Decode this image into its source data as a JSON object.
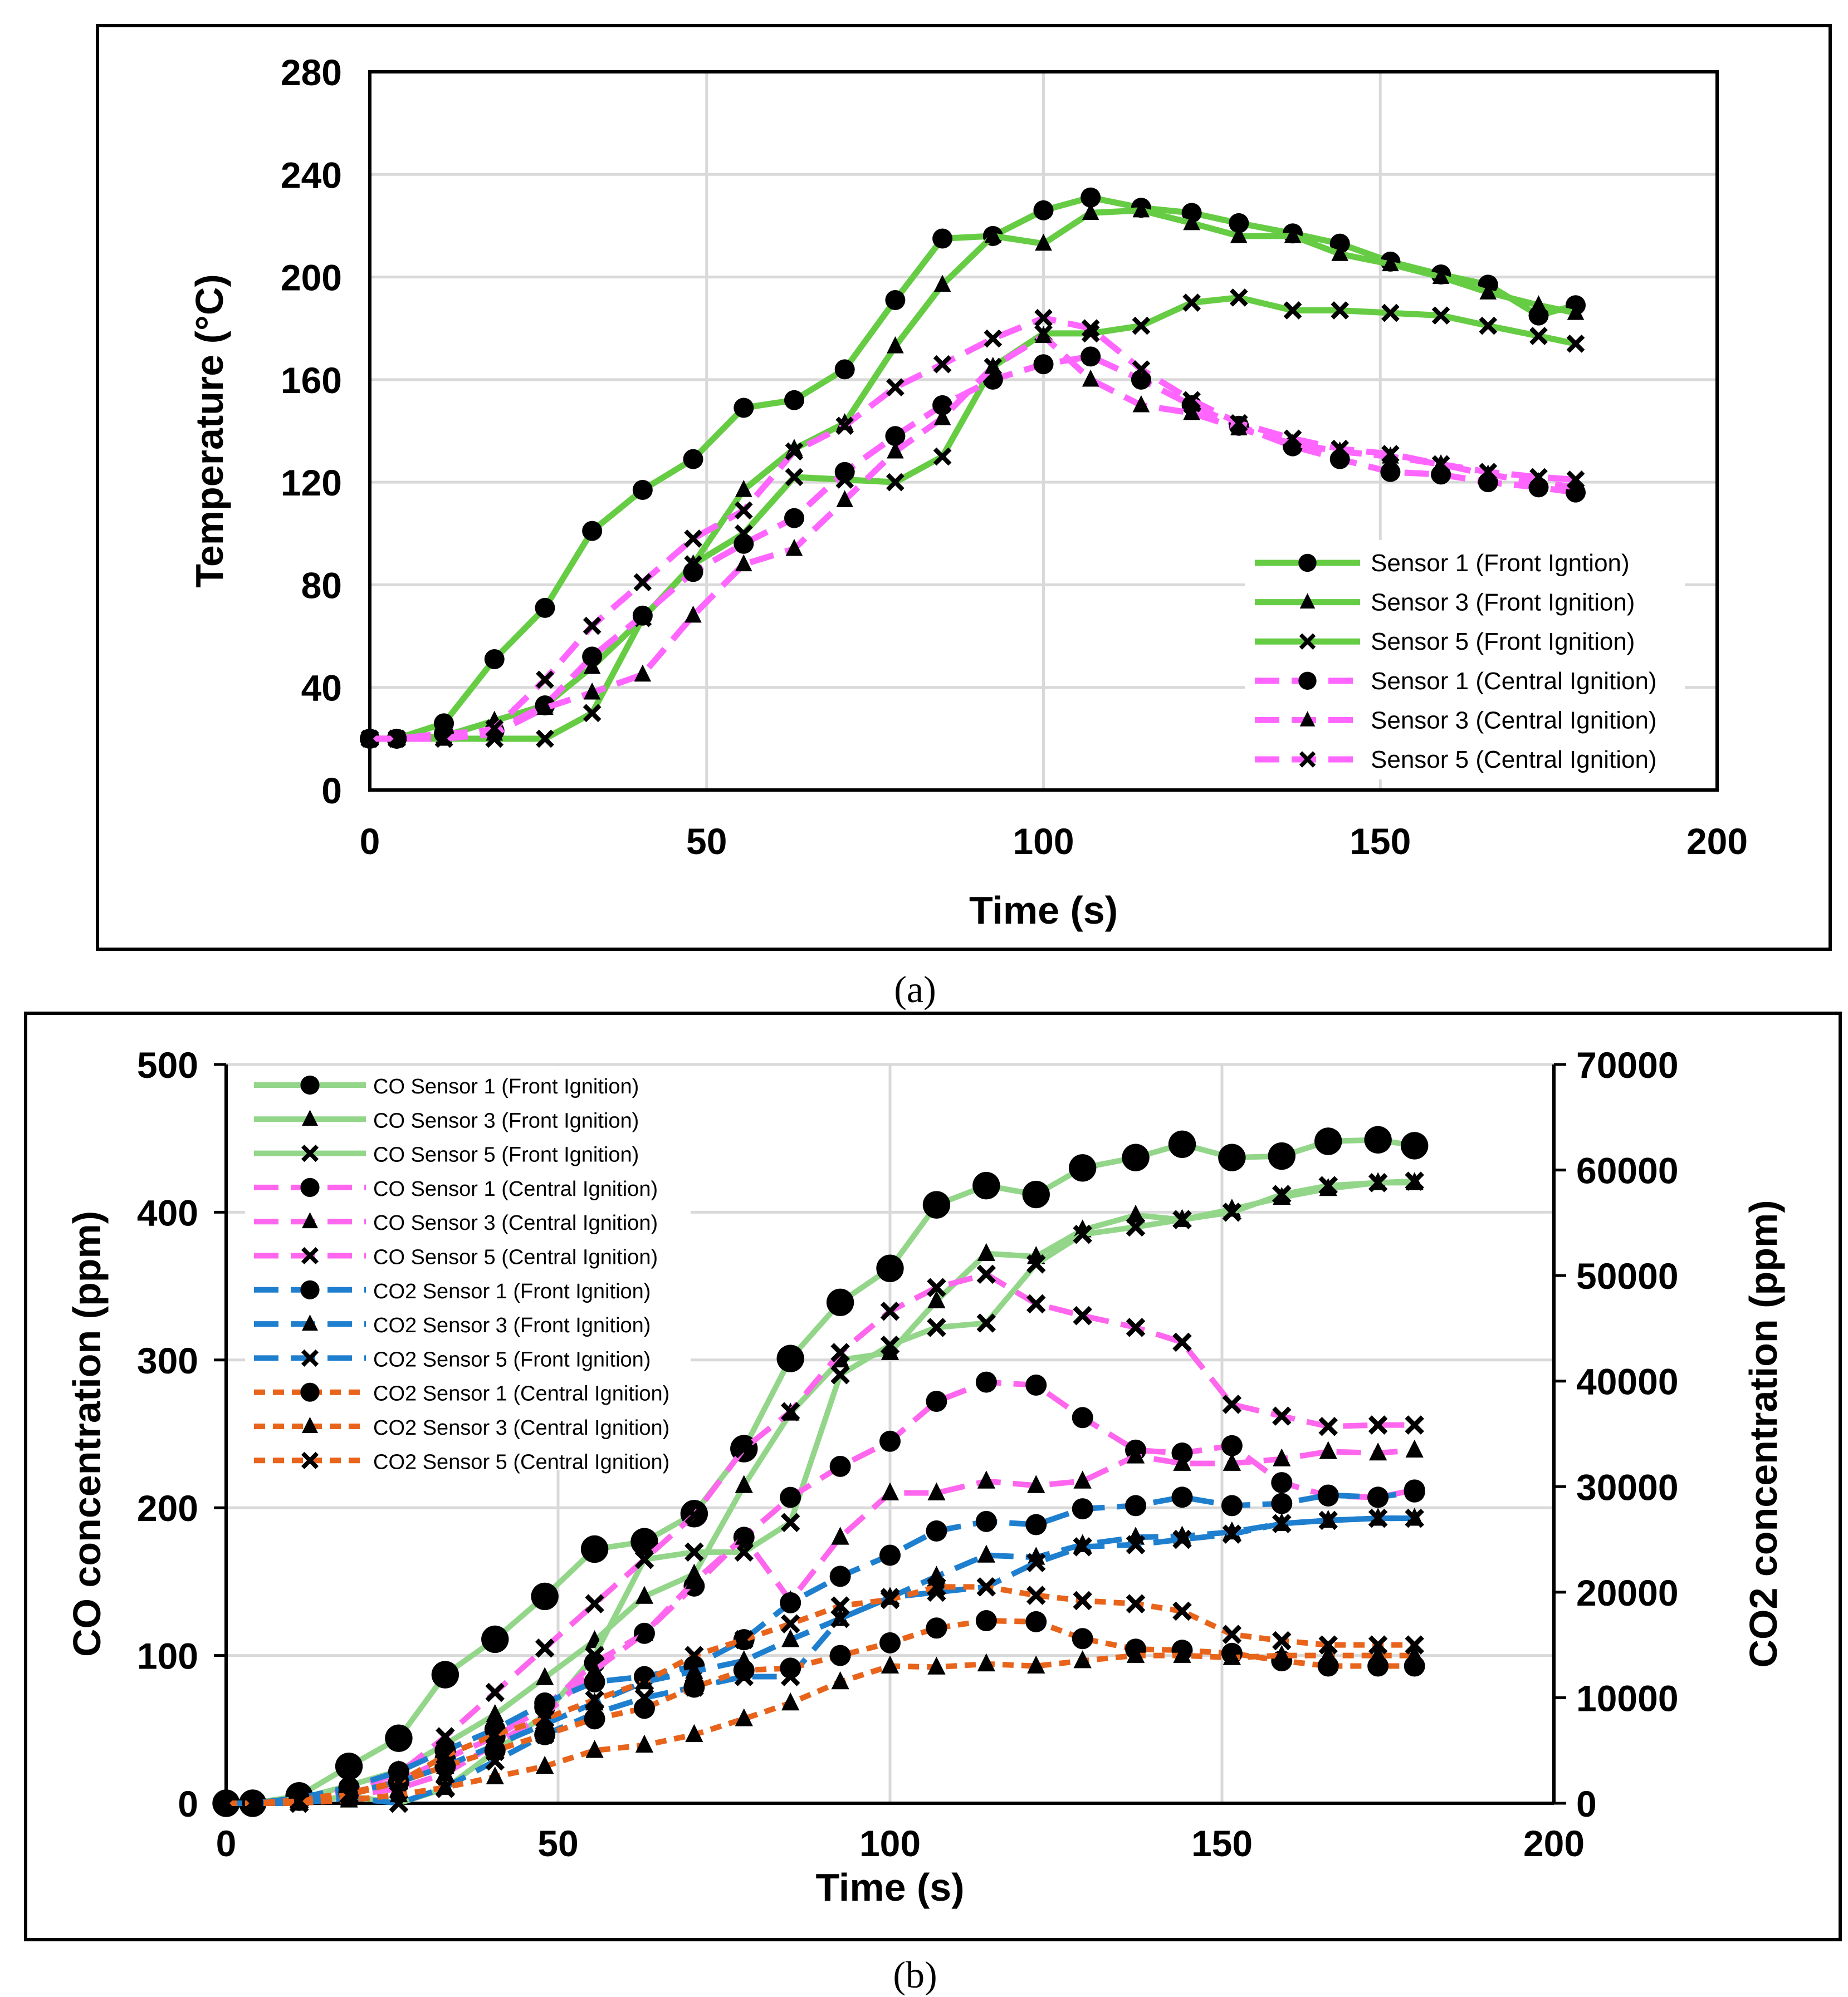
{
  "chart_data": [
    {
      "type": "line",
      "panel_label": "(a)",
      "xlabel": "Time (s)",
      "ylabel": "Temperature (°C)",
      "xlim": [
        0,
        200
      ],
      "ylim": [
        0,
        280
      ],
      "xticks": [
        0,
        50,
        100,
        150,
        200
      ],
      "yticks": [
        0,
        40,
        80,
        120,
        160,
        200,
        240,
        280
      ],
      "grid": true,
      "legend_position": "bottom-right",
      "x": [
        0,
        4,
        11,
        18.5,
        26,
        33,
        40.5,
        48,
        55.5,
        63,
        70.5,
        78,
        85,
        92.5,
        100,
        107,
        114.5,
        122,
        129,
        137,
        144,
        151.5,
        159,
        166,
        173.5,
        179
      ],
      "series": [
        {
          "name": "Sensor 1 (Front Igntion)",
          "color": "#66cc44",
          "dash": "solid",
          "marker": "circle",
          "values": [
            20,
            20,
            26,
            51,
            71,
            101,
            117,
            129,
            149,
            152,
            164,
            191,
            215,
            216,
            226,
            231,
            227,
            225,
            221,
            217,
            213,
            206,
            201,
            197,
            185,
            189
          ]
        },
        {
          "name": "Sensor 3 (Front Ignition)",
          "color": "#66cc44",
          "dash": "solid",
          "marker": "triangle",
          "values": [
            20,
            20,
            21,
            27,
            33,
            48,
            67,
            88,
            117,
            133,
            143,
            173,
            197,
            216,
            213,
            225,
            226,
            221,
            216,
            216,
            209,
            205,
            200,
            194,
            189,
            186
          ]
        },
        {
          "name": "Sensor 5 (Front Ignition)",
          "color": "#66cc44",
          "dash": "solid",
          "marker": "x",
          "values": [
            20,
            20,
            20,
            20,
            20,
            30,
            67,
            88,
            100,
            122,
            121,
            120,
            130,
            165,
            178,
            178,
            181,
            190,
            192,
            187,
            187,
            186,
            185,
            181,
            177,
            174
          ]
        },
        {
          "name": "Sensor 1 (Central Ignition)",
          "color": "#ff66ff",
          "dash": "long",
          "marker": "circle",
          "values": [
            20,
            20,
            22,
            23,
            33,
            52,
            68,
            85,
            96,
            106,
            124,
            138,
            150,
            160,
            166,
            169,
            160,
            150,
            142,
            134,
            129,
            124,
            123,
            120,
            118,
            116
          ]
        },
        {
          "name": "Sensor 3 (Central Ignition)",
          "color": "#ff66ff",
          "dash": "long",
          "marker": "triangle",
          "values": [
            20,
            20,
            20,
            22,
            32,
            38,
            45,
            68,
            88,
            94,
            113,
            132,
            145,
            165,
            177,
            160,
            150,
            147,
            141,
            135,
            132,
            130,
            127,
            123,
            120,
            118
          ]
        },
        {
          "name": "Sensor 5 (Central Ignition)",
          "color": "#ff66ff",
          "dash": "long",
          "marker": "x",
          "values": [
            20,
            20,
            20,
            24,
            43,
            64,
            81,
            98,
            109,
            132,
            142,
            157,
            166,
            176,
            184,
            180,
            164,
            152,
            143,
            137,
            133,
            131,
            127,
            124,
            122,
            121
          ]
        }
      ]
    },
    {
      "type": "line",
      "panel_label": "(b)",
      "xlabel": "Time (s)",
      "ylabel": "CO concentration (ppm)",
      "y2label": "CO2 concentration (ppm)",
      "xlim": [
        0,
        200
      ],
      "ylim": [
        0,
        500
      ],
      "y2lim": [
        0,
        70000
      ],
      "xticks": [
        0,
        50,
        100,
        150,
        200
      ],
      "yticks": [
        0,
        100,
        200,
        300,
        400,
        500
      ],
      "y2ticks": [
        0,
        10000,
        20000,
        30000,
        40000,
        50000,
        60000,
        70000
      ],
      "grid": true,
      "legend_position": "top-left",
      "x": [
        0,
        4,
        11,
        18.5,
        26,
        33,
        40.5,
        48,
        55.5,
        63,
        70.5,
        78,
        85,
        92.5,
        100,
        107,
        114.5,
        122,
        129,
        137,
        144,
        151.5,
        159,
        166,
        173.5,
        179
      ],
      "series": [
        {
          "name": "CO Sensor 1 (Front Ignition)",
          "axis": "left",
          "color": "#93d68a",
          "dash": "solid",
          "marker": "circle",
          "values": [
            0,
            0,
            5,
            25,
            44,
            87,
            111,
            140,
            172,
            177,
            196,
            240,
            301,
            339,
            362,
            405,
            418,
            412,
            430,
            437,
            446,
            437,
            438,
            448,
            449,
            445
          ]
        },
        {
          "name": "CO Sensor 3 (Front Ignition)",
          "axis": "left",
          "color": "#93d68a",
          "dash": "solid",
          "marker": "triangle",
          "values": [
            0,
            0,
            3,
            12,
            22,
            40,
            60,
            85,
            110,
            140,
            155,
            215,
            264,
            300,
            305,
            340,
            372,
            370,
            388,
            398,
            395,
            402,
            410,
            416,
            420,
            420
          ]
        },
        {
          "name": "CO Sensor 5 (Front Ignition)",
          "axis": "left",
          "color": "#93d68a",
          "dash": "solid",
          "marker": "x",
          "values": [
            0,
            0,
            0,
            5,
            0,
            10,
            35,
            60,
            100,
            165,
            170,
            170,
            190,
            290,
            310,
            322,
            325,
            365,
            385,
            390,
            395,
            400,
            412,
            418,
            420,
            421
          ]
        },
        {
          "name": "CO Sensor 1 (Central Ignition)",
          "axis": "left",
          "color": "#ff66ee",
          "dash": "long",
          "marker": "circle",
          "values": [
            0,
            0,
            2,
            8,
            15,
            30,
            45,
            65,
            95,
            115,
            147,
            180,
            207,
            228,
            245,
            272,
            285,
            283,
            261,
            239,
            237,
            242,
            217,
            208,
            207,
            212
          ]
        },
        {
          "name": "CO Sensor 3 (Central Ignition)",
          "axis": "left",
          "color": "#ff66ee",
          "dash": "long",
          "marker": "triangle",
          "values": [
            0,
            0,
            2,
            5,
            10,
            20,
            40,
            60,
            90,
            115,
            150,
            180,
            137,
            180,
            210,
            210,
            218,
            215,
            218,
            235,
            230,
            230,
            233,
            238,
            237,
            239
          ]
        },
        {
          "name": "CO Sensor 5 (Central Ignition)",
          "axis": "left",
          "color": "#ff66ee",
          "dash": "long",
          "marker": "x",
          "values": [
            0,
            0,
            0,
            10,
            20,
            45,
            75,
            105,
            135,
            165,
            195,
            240,
            265,
            305,
            333,
            349,
            358,
            338,
            330,
            322,
            312,
            270,
            262,
            255,
            256,
            256
          ]
        },
        {
          "name": "CO2 Sensor 1 (Front Ignition)",
          "axis": "right",
          "color": "#1f7fcf",
          "dash": "long",
          "marker": "circle",
          "values": [
            0,
            0,
            500,
            1500,
            3000,
            5000,
            7000,
            9500,
            11500,
            12000,
            13000,
            15500,
            19000,
            21500,
            23500,
            25800,
            26700,
            26400,
            27900,
            28200,
            29000,
            28200,
            28400,
            29200,
            29000,
            29500
          ]
        },
        {
          "name": "CO2 Sensor 3 (Front Ignition)",
          "axis": "right",
          "color": "#1f7fcf",
          "dash": "long",
          "marker": "triangle",
          "values": [
            0,
            0,
            300,
            1000,
            2000,
            3500,
            5500,
            7500,
            9500,
            11500,
            12500,
            13500,
            15500,
            17500,
            19500,
            21500,
            23500,
            23300,
            24500,
            25200,
            25300,
            25700,
            26500,
            26800,
            27000,
            27000
          ]
        },
        {
          "name": "CO2 Sensor 5 (Front Ignition)",
          "axis": "right",
          "color": "#1f7fcf",
          "dash": "long",
          "marker": "x",
          "values": [
            0,
            0,
            0,
            500,
            0,
            1500,
            4000,
            6500,
            8500,
            10000,
            11000,
            12000,
            12000,
            17500,
            19500,
            20000,
            20500,
            22800,
            24300,
            24500,
            25000,
            25500,
            26500,
            26800,
            27000,
            27000
          ]
        },
        {
          "name": "CO2 Sensor 1 (Central Ignition)",
          "axis": "right",
          "color": "#e8641b",
          "dash": "short",
          "marker": "circle",
          "values": [
            0,
            0,
            300,
            1000,
            2000,
            3500,
            5000,
            6500,
            8000,
            9000,
            11000,
            12600,
            12800,
            14000,
            15200,
            16600,
            17300,
            17200,
            15600,
            14600,
            14500,
            14200,
            13500,
            13000,
            13000,
            13000
          ]
        },
        {
          "name": "CO2 Sensor 3 (Central Ignition)",
          "axis": "right",
          "color": "#e8641b",
          "dash": "short",
          "marker": "triangle",
          "values": [
            0,
            0,
            0,
            300,
            800,
            1500,
            2500,
            3500,
            5000,
            5500,
            6500,
            8000,
            9500,
            11500,
            13000,
            12900,
            13200,
            13000,
            13500,
            14000,
            14000,
            13800,
            14000,
            14000,
            14000,
            14000
          ]
        },
        {
          "name": "CO2 Sensor 5 (Central Ignition)",
          "axis": "right",
          "color": "#e8641b",
          "dash": "short",
          "marker": "x",
          "values": [
            0,
            0,
            200,
            800,
            2000,
            4500,
            6500,
            8000,
            9800,
            11500,
            14000,
            15500,
            17000,
            18700,
            19300,
            20500,
            20500,
            19700,
            19200,
            18900,
            18200,
            16000,
            15400,
            15000,
            15000,
            15000
          ]
        }
      ]
    }
  ]
}
